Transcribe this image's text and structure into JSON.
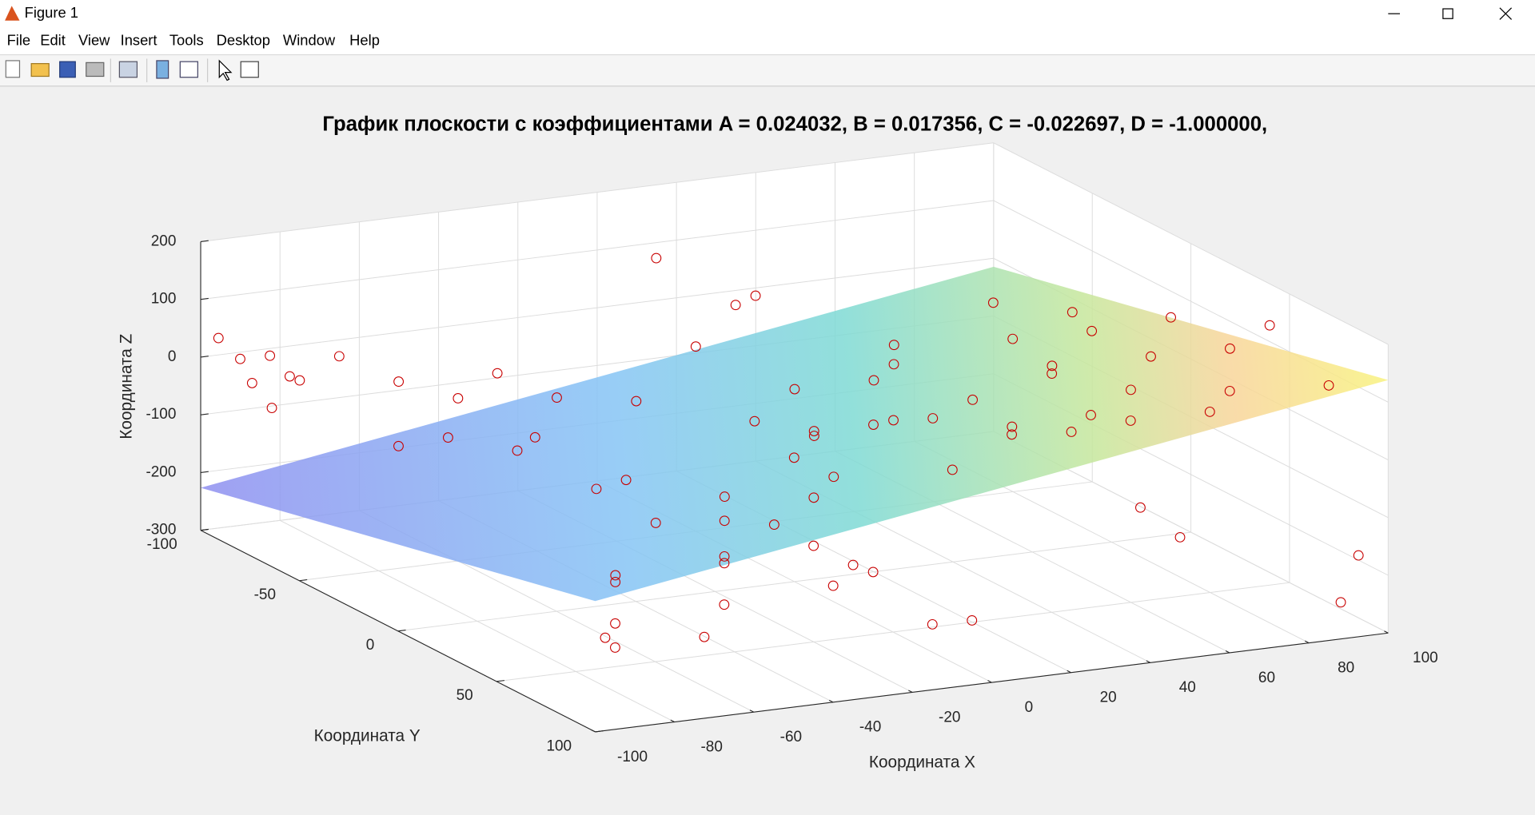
{
  "window": {
    "title": "Figure 1",
    "menu": [
      "File",
      "Edit",
      "View",
      "Insert",
      "Tools",
      "Desktop",
      "Window",
      "Help"
    ]
  },
  "chart_data": {
    "type": "scatter3d",
    "title": "График плоскости с коэффициентами A = 0.024032, B = 0.017356, C = -0.022697, D = -1.000000,",
    "xlabel": "Координата X",
    "ylabel": "Координата Y",
    "zlabel": "Координата Z",
    "plane": {
      "A": 0.024032,
      "B": 0.017356,
      "C": -0.022697,
      "D": -1.0
    },
    "color": "#c80000",
    "x": [
      -98,
      -95,
      -93,
      -90,
      -92,
      -85,
      -80,
      -75,
      -70,
      -65,
      -60,
      -55,
      -50,
      -48,
      -45,
      -40,
      -35,
      -30,
      -25,
      -20,
      -10,
      -5,
      0,
      -95,
      -90,
      -85,
      -80,
      -75,
      -70,
      -60,
      -55,
      -50,
      -45,
      -40,
      -35,
      -30,
      -25,
      -20,
      -15,
      -10,
      -5,
      0,
      5,
      10,
      10,
      15,
      20,
      20,
      25,
      30,
      30,
      35,
      40,
      40,
      45,
      50,
      50,
      55,
      60,
      60,
      65,
      70,
      70,
      75,
      80,
      80,
      85,
      90,
      90,
      95,
      95,
      98,
      50,
      40,
      -5,
      -60,
      20,
      0,
      30,
      -20
    ],
    "y": [
      -95,
      -90,
      -88,
      -85,
      -80,
      -85,
      -90,
      -80,
      -60,
      -70,
      -55,
      -60,
      -40,
      -35,
      -30,
      -20,
      -15,
      -10,
      40,
      20,
      60,
      80,
      90,
      95,
      90,
      80,
      70,
      60,
      95,
      85,
      75,
      65,
      55,
      45,
      90,
      70,
      80,
      50,
      30,
      40,
      20,
      10,
      30,
      60,
      -20,
      40,
      10,
      70,
      -10,
      50,
      90,
      20,
      60,
      -30,
      80,
      30,
      -50,
      60,
      10,
      90,
      -20,
      40,
      80,
      0,
      60,
      -60,
      20,
      90,
      -40,
      50,
      95,
      80,
      95,
      95,
      -60,
      -30,
      -70,
      -50,
      -80,
      -40
    ],
    "z": [
      40,
      10,
      -30,
      20,
      -60,
      -20,
      -40,
      15,
      -110,
      -20,
      -95,
      -40,
      -100,
      -70,
      5,
      -140,
      -120,
      -190,
      -110,
      30,
      -170,
      -230,
      -210,
      -150,
      -180,
      -160,
      -110,
      -120,
      -170,
      -140,
      -90,
      -100,
      -60,
      -40,
      -120,
      -90,
      -110,
      -50,
      -20,
      -40,
      0,
      -30,
      20,
      -10,
      -10,
      40,
      -20,
      60,
      10,
      30,
      120,
      20,
      30,
      -10,
      80,
      70,
      -20,
      90,
      40,
      100,
      30,
      100,
      110,
      70,
      140,
      10,
      120,
      120,
      20,
      150,
      -170,
      -280,
      -100,
      -40,
      160,
      60,
      40,
      20,
      30,
      -40
    ],
    "xlim": [
      -100,
      100
    ],
    "ylim": [
      -100,
      100
    ],
    "zlim": [
      -300,
      200
    ],
    "xticks": [
      -100,
      -80,
      -60,
      -40,
      -20,
      0,
      20,
      40,
      60,
      80,
      100
    ],
    "yticks": [
      -100,
      -50,
      0,
      50,
      100
    ],
    "zticks": [
      -300,
      -200,
      -100,
      0,
      100,
      200
    ],
    "grid": true
  }
}
